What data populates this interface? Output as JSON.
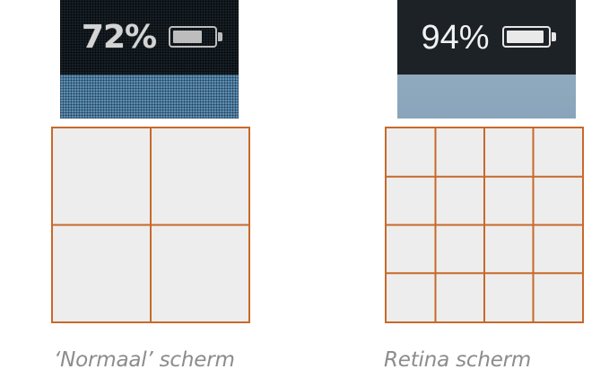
{
  "normal_screen": {
    "battery_percent": "72%",
    "battery_level": 0.72
  },
  "retina_screen": {
    "battery_percent": "94%",
    "battery_level": 0.94
  },
  "normal_grid": {
    "divisions": 2
  },
  "retina_grid": {
    "divisions": 4
  },
  "captions": {
    "normal": "‘Normaal’ scherm",
    "retina": "Retina scherm"
  },
  "colors": {
    "grid_line": "#c8692a",
    "grid_fill": "#ededed",
    "caption": "#8c8c8c"
  }
}
